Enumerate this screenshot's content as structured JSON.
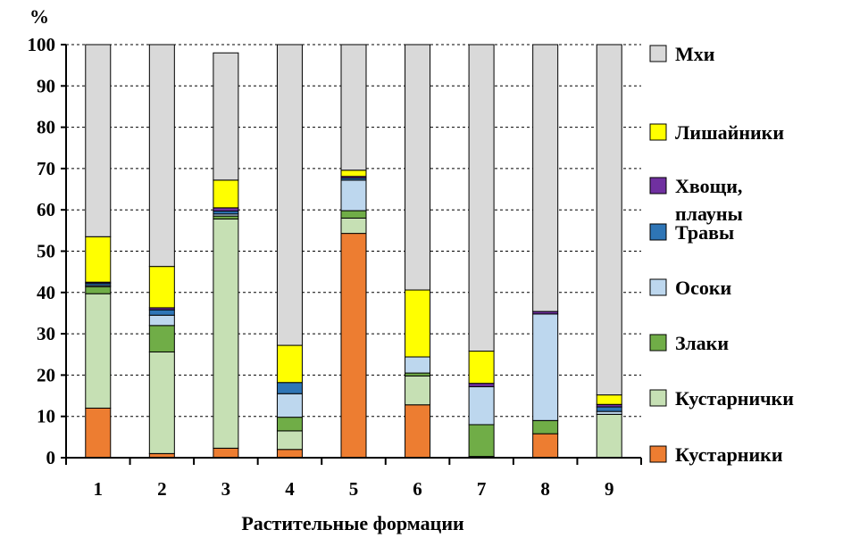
{
  "chart_data": {
    "type": "bar",
    "stacked": true,
    "title": "",
    "xlabel": "Растительные формации",
    "ylabel": "%",
    "ylim": [
      0,
      100
    ],
    "yticks": [
      0,
      10,
      20,
      30,
      40,
      50,
      60,
      70,
      80,
      90,
      100
    ],
    "grid": true,
    "legend_position": "right",
    "categories": [
      "1",
      "2",
      "3",
      "4",
      "5",
      "6",
      "7",
      "8",
      "9"
    ],
    "series": [
      {
        "name": "Кустарники",
        "color": "#ed7d31",
        "values": [
          12,
          1,
          2.3,
          2,
          54.3,
          12.8,
          0,
          5.8,
          0
        ]
      },
      {
        "name": "Кустарнички",
        "color": "#c6e0b4",
        "values": [
          27.7,
          24.6,
          55.5,
          4.5,
          3.7,
          7,
          0.3,
          0,
          10.5
        ]
      },
      {
        "name": "Злаки",
        "color": "#70ad47",
        "values": [
          1.7,
          6.4,
          0.7,
          3.3,
          1.8,
          0.7,
          7.7,
          3.2,
          0
        ]
      },
      {
        "name": "Осоки",
        "color": "#bdd7ee",
        "values": [
          0.3,
          2.5,
          0.5,
          5.7,
          7.4,
          3.9,
          9.2,
          25.8,
          0.7
        ]
      },
      {
        "name": "Травы",
        "color": "#2e75b6",
        "values": [
          0.5,
          1.3,
          0.7,
          2.7,
          0.5,
          0,
          0,
          0,
          1.1
        ]
      },
      {
        "name": "Хвощи, плауны",
        "color": "#7030a0",
        "values": [
          0.3,
          0.5,
          0.8,
          0,
          0.4,
          0,
          0.8,
          0.6,
          0.6
        ]
      },
      {
        "name": "Лишайники",
        "color": "#ffff00",
        "values": [
          11,
          10,
          6.7,
          9,
          1.5,
          16.2,
          7.8,
          0,
          2.3
        ]
      },
      {
        "name": "Мхи",
        "color": "#d9d9d9",
        "values": [
          46.5,
          53.7,
          30.8,
          72.8,
          30.4,
          59.4,
          74.2,
          64.6,
          84.8
        ]
      }
    ],
    "legend_order": [
      "Мхи",
      "Лишайники",
      "Хвощи, плауны",
      "Травы",
      "Осоки",
      "Злаки",
      "Кустарнички",
      "Кустарники"
    ]
  }
}
